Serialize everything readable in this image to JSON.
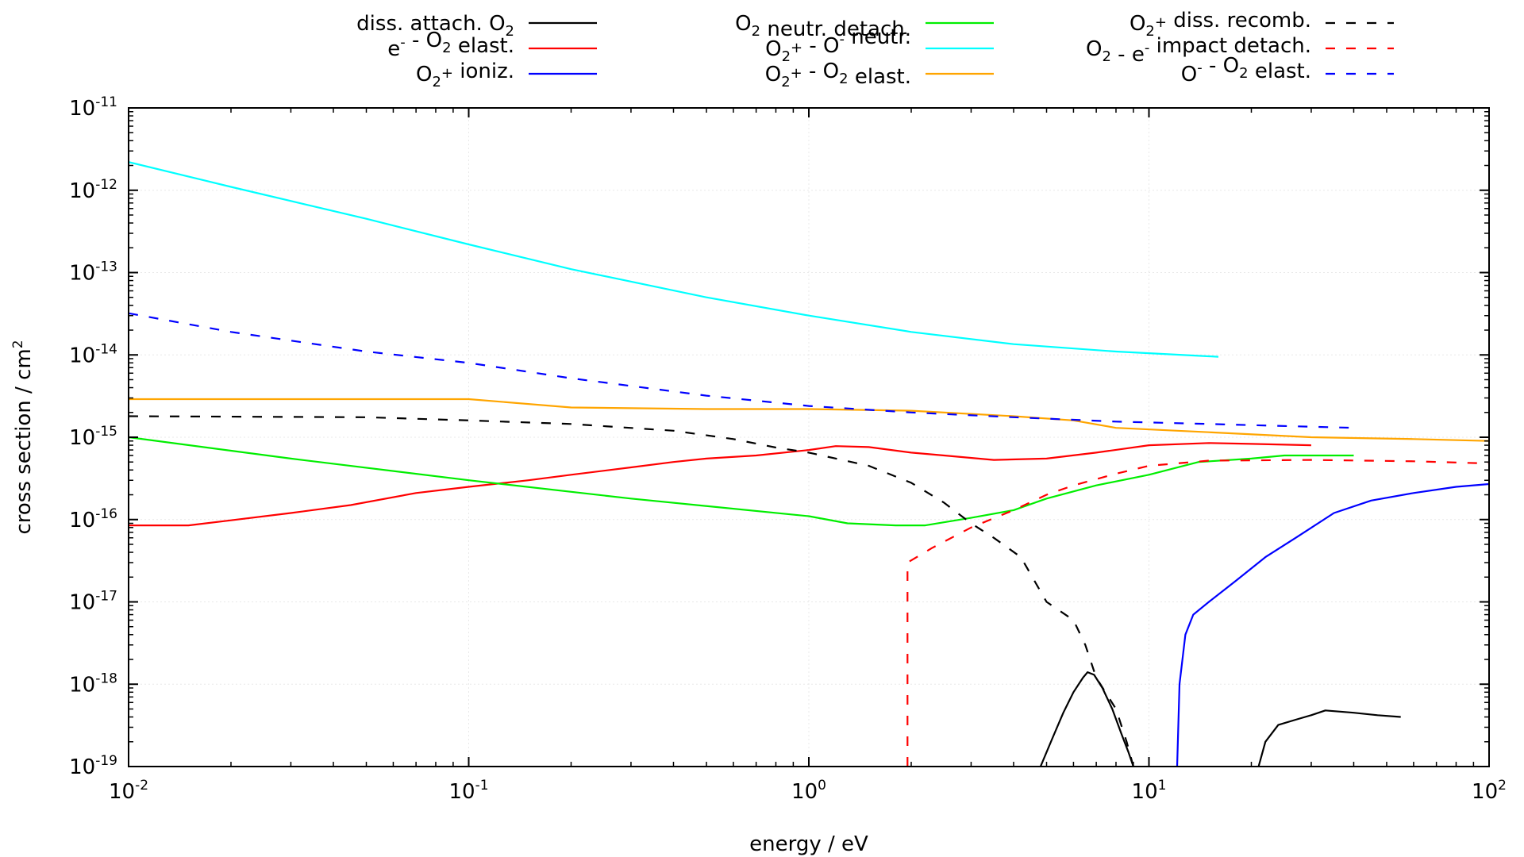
{
  "chart_data": {
    "type": "line",
    "xlabel": "energy / eV",
    "ylabel": "cross section / cm",
    "ylabel_sup": "2",
    "x_scale": "log",
    "y_scale": "log",
    "xlim": [
      0.01,
      100
    ],
    "ylim": [
      1e-19,
      1e-11
    ],
    "grid": true,
    "legend_placement": "top, outside plot, three columns",
    "x_ticks": [
      {
        "base": "10",
        "exp": "-2",
        "value": 0.01
      },
      {
        "base": "10",
        "exp": "-1",
        "value": 0.1
      },
      {
        "base": "10",
        "exp": "0",
        "value": 1
      },
      {
        "base": "10",
        "exp": "1",
        "value": 10
      },
      {
        "base": "10",
        "exp": "2",
        "value": 100
      }
    ],
    "y_ticks": [
      {
        "base": "10",
        "exp": "-11",
        "value": 1e-11
      },
      {
        "base": "10",
        "exp": "-12",
        "value": 1e-12
      },
      {
        "base": "10",
        "exp": "-13",
        "value": 1e-13
      },
      {
        "base": "10",
        "exp": "-14",
        "value": 1e-14
      },
      {
        "base": "10",
        "exp": "-15",
        "value": 1e-15
      },
      {
        "base": "10",
        "exp": "-16",
        "value": 1e-16
      },
      {
        "base": "10",
        "exp": "-17",
        "value": 1e-17
      },
      {
        "base": "10",
        "exp": "-18",
        "value": 1e-18
      },
      {
        "base": "10",
        "exp": "-19",
        "value": 1e-19
      }
    ],
    "series": [
      {
        "name": "diss. attach. O2",
        "label_parts": [
          {
            "t": "diss. attach. O"
          },
          {
            "t": "2",
            "s": "sub"
          }
        ],
        "color": "#000000",
        "dash": "solid",
        "segments": [
          [
            [
              4.8,
              1e-19
            ],
            [
              5.2,
              2.2e-19
            ],
            [
              5.6,
              4.5e-19
            ],
            [
              6.0,
              8e-19
            ],
            [
              6.4,
              1.2e-18
            ],
            [
              6.6,
              1.4e-18
            ],
            [
              6.9,
              1.3e-18
            ],
            [
              7.3,
              9e-19
            ],
            [
              7.8,
              5e-19
            ],
            [
              8.3,
              2.5e-19
            ],
            [
              8.7,
              1.5e-19
            ],
            [
              9.0,
              1e-19
            ]
          ],
          [
            [
              21,
              1e-19
            ],
            [
              22,
              2e-19
            ],
            [
              24,
              3.2e-19
            ],
            [
              27,
              3.7e-19
            ],
            [
              30,
              4.2e-19
            ],
            [
              33,
              4.8e-19
            ],
            [
              40,
              4.5e-19
            ],
            [
              47,
              4.2e-19
            ],
            [
              55,
              4e-19
            ]
          ]
        ]
      },
      {
        "name": "e- - O2 elast.",
        "label_parts": [
          {
            "t": "e"
          },
          {
            "t": "-",
            "s": "sup"
          },
          {
            "t": " - O"
          },
          {
            "t": "2",
            "s": "sub"
          },
          {
            "t": " elast."
          }
        ],
        "color": "#ff0000",
        "dash": "solid",
        "segments": [
          [
            [
              0.01,
              8.5e-17
            ],
            [
              0.015,
              8.5e-17
            ],
            [
              0.02,
              9.8e-17
            ],
            [
              0.03,
              1.2e-16
            ],
            [
              0.045,
              1.5e-16
            ],
            [
              0.07,
              2.1e-16
            ],
            [
              0.1,
              2.5e-16
            ],
            [
              0.15,
              3e-16
            ],
            [
              0.2,
              3.5e-16
            ],
            [
              0.3,
              4.3e-16
            ],
            [
              0.4,
              5e-16
            ],
            [
              0.5,
              5.5e-16
            ],
            [
              0.7,
              6e-16
            ],
            [
              1.0,
              7e-16
            ],
            [
              1.2,
              7.8e-16
            ],
            [
              1.5,
              7.6e-16
            ],
            [
              2.0,
              6.5e-16
            ],
            [
              2.5,
              6e-16
            ],
            [
              3.5,
              5.3e-16
            ],
            [
              5,
              5.5e-16
            ],
            [
              7,
              6.5e-16
            ],
            [
              10,
              8e-16
            ],
            [
              15,
              8.5e-16
            ],
            [
              20,
              8.3e-16
            ],
            [
              30,
              8e-16
            ]
          ]
        ]
      },
      {
        "name": "O2+ ioniz.",
        "label_parts": [
          {
            "t": "O"
          },
          {
            "t": "2",
            "s": "sub"
          },
          {
            "t": "+",
            "s": "sup"
          },
          {
            "t": " ioniz."
          }
        ],
        "color": "#0000ff",
        "dash": "solid",
        "segments": [
          [
            [
              12.1,
              1e-19
            ],
            [
              12.3,
              1e-18
            ],
            [
              12.8,
              4e-18
            ],
            [
              13.5,
              7e-18
            ],
            [
              15,
              1e-17
            ],
            [
              18,
              1.8e-17
            ],
            [
              22,
              3.5e-17
            ],
            [
              27,
              6e-17
            ],
            [
              35,
              1.2e-16
            ],
            [
              45,
              1.7e-16
            ],
            [
              60,
              2.1e-16
            ],
            [
              80,
              2.5e-16
            ],
            [
              100,
              2.7e-16
            ]
          ]
        ]
      },
      {
        "name": "O2 neutr. detach.",
        "label_parts": [
          {
            "t": "O"
          },
          {
            "t": "2",
            "s": "sub"
          },
          {
            "t": " neutr. detach."
          }
        ],
        "color": "#00ee00",
        "dash": "solid",
        "segments": [
          [
            [
              0.01,
              1e-15
            ],
            [
              0.03,
              5.5e-16
            ],
            [
              0.1,
              3e-16
            ],
            [
              0.3,
              1.8e-16
            ],
            [
              1.0,
              1.1e-16
            ],
            [
              1.3,
              9e-17
            ],
            [
              1.8,
              8.5e-17
            ],
            [
              2.2,
              8.5e-17
            ],
            [
              3,
              1.05e-16
            ],
            [
              4,
              1.3e-16
            ],
            [
              5,
              1.8e-16
            ],
            [
              7,
              2.6e-16
            ],
            [
              10,
              3.5e-16
            ],
            [
              14,
              5e-16
            ],
            [
              20,
              5.5e-16
            ],
            [
              25,
              6e-16
            ],
            [
              40,
              6e-16
            ]
          ]
        ]
      },
      {
        "name": "O2+ - O- neutr.",
        "label_parts": [
          {
            "t": "O"
          },
          {
            "t": "2",
            "s": "sub"
          },
          {
            "t": "+",
            "s": "sup"
          },
          {
            "t": " - O"
          },
          {
            "t": "-",
            "s": "sup"
          },
          {
            "t": " neutr."
          }
        ],
        "color": "#00ffff",
        "dash": "solid",
        "segments": [
          [
            [
              0.01,
              2.2e-12
            ],
            [
              0.02,
              1.1e-12
            ],
            [
              0.05,
              4.5e-13
            ],
            [
              0.1,
              2.2e-13
            ],
            [
              0.2,
              1.1e-13
            ],
            [
              0.5,
              5e-14
            ],
            [
              1,
              3e-14
            ],
            [
              2,
              1.9e-14
            ],
            [
              4,
              1.35e-14
            ],
            [
              8,
              1.1e-14
            ],
            [
              16,
              9.5e-15
            ]
          ]
        ]
      },
      {
        "name": "O2+ - O2 elast.",
        "label_parts": [
          {
            "t": "O"
          },
          {
            "t": "2",
            "s": "sub"
          },
          {
            "t": "+",
            "s": "sup"
          },
          {
            "t": " - O"
          },
          {
            "t": "2",
            "s": "sub"
          },
          {
            "t": " elast."
          }
        ],
        "color": "#ffa500",
        "dash": "solid",
        "segments": [
          [
            [
              0.01,
              2.9e-15
            ],
            [
              0.1,
              2.9e-15
            ],
            [
              0.2,
              2.3e-15
            ],
            [
              0.5,
              2.2e-15
            ],
            [
              1,
              2.2e-15
            ],
            [
              2,
              2.1e-15
            ],
            [
              4,
              1.8e-15
            ],
            [
              6,
              1.6e-15
            ],
            [
              8,
              1.3e-15
            ],
            [
              15,
              1.15e-15
            ],
            [
              30,
              1e-15
            ],
            [
              60,
              9.5e-16
            ],
            [
              100,
              9e-16
            ]
          ]
        ]
      },
      {
        "name": "O2+ diss. recomb.",
        "label_parts": [
          {
            "t": "O"
          },
          {
            "t": "2",
            "s": "sub"
          },
          {
            "t": "+",
            "s": "sup"
          },
          {
            "t": " diss. recomb."
          }
        ],
        "color": "#000000",
        "dash": "dashed",
        "segments": [
          [
            [
              0.01,
              1.8e-15
            ],
            [
              0.05,
              1.75e-15
            ],
            [
              0.1,
              1.6e-15
            ],
            [
              0.2,
              1.45e-15
            ],
            [
              0.4,
              1.2e-15
            ],
            [
              0.6,
              9.5e-16
            ],
            [
              0.8,
              7.5e-16
            ],
            [
              1.0,
              6.5e-16
            ],
            [
              1.5,
              4.5e-16
            ],
            [
              2.0,
              2.8e-16
            ],
            [
              2.5,
              1.6e-16
            ],
            [
              3.0,
              9e-17
            ],
            [
              3.5,
              6e-17
            ],
            [
              4.2,
              3.5e-17
            ],
            [
              5.0,
              1e-17
            ],
            [
              6.0,
              6e-18
            ],
            [
              6.5,
              3e-18
            ],
            [
              7.0,
              1.2e-18
            ],
            [
              8.0,
              5e-19
            ],
            [
              8.6,
              2e-19
            ],
            [
              9.0,
              1e-19
            ]
          ]
        ]
      },
      {
        "name": "O2 - e- impact detach.",
        "label_parts": [
          {
            "t": "O"
          },
          {
            "t": "2",
            "s": "sub"
          },
          {
            "t": " - e"
          },
          {
            "t": "-",
            "s": "sup"
          },
          {
            "t": " impact detach."
          }
        ],
        "color": "#ff0000",
        "dash": "dashed",
        "segments": [
          [
            [
              1.95,
              1e-19
            ],
            [
              1.95,
              3e-17
            ],
            [
              2.3,
              4.5e-17
            ],
            [
              3,
              8e-17
            ],
            [
              4,
              1.3e-16
            ],
            [
              5,
              2e-16
            ],
            [
              6,
              2.6e-16
            ],
            [
              8,
              3.6e-16
            ],
            [
              10,
              4.5e-16
            ],
            [
              15,
              5.2e-16
            ],
            [
              30,
              5.3e-16
            ],
            [
              60,
              5.1e-16
            ],
            [
              100,
              4.8e-16
            ]
          ]
        ]
      },
      {
        "name": "O- - O2 elast.",
        "label_parts": [
          {
            "t": "O"
          },
          {
            "t": "-",
            "s": "sup"
          },
          {
            "t": " - O"
          },
          {
            "t": "2",
            "s": "sub"
          },
          {
            "t": " elast."
          }
        ],
        "color": "#0000ff",
        "dash": "dashed",
        "segments": [
          [
            [
              0.01,
              3.2e-14
            ],
            [
              0.02,
              1.9e-14
            ],
            [
              0.05,
              1.1e-14
            ],
            [
              0.1,
              8e-15
            ],
            [
              0.2,
              5.2e-15
            ],
            [
              0.5,
              3.2e-15
            ],
            [
              1,
              2.4e-15
            ],
            [
              2,
              2e-15
            ],
            [
              4,
              1.75e-15
            ],
            [
              8,
              1.55e-15
            ],
            [
              15,
              1.45e-15
            ],
            [
              40,
              1.3e-15
            ]
          ]
        ]
      }
    ]
  }
}
